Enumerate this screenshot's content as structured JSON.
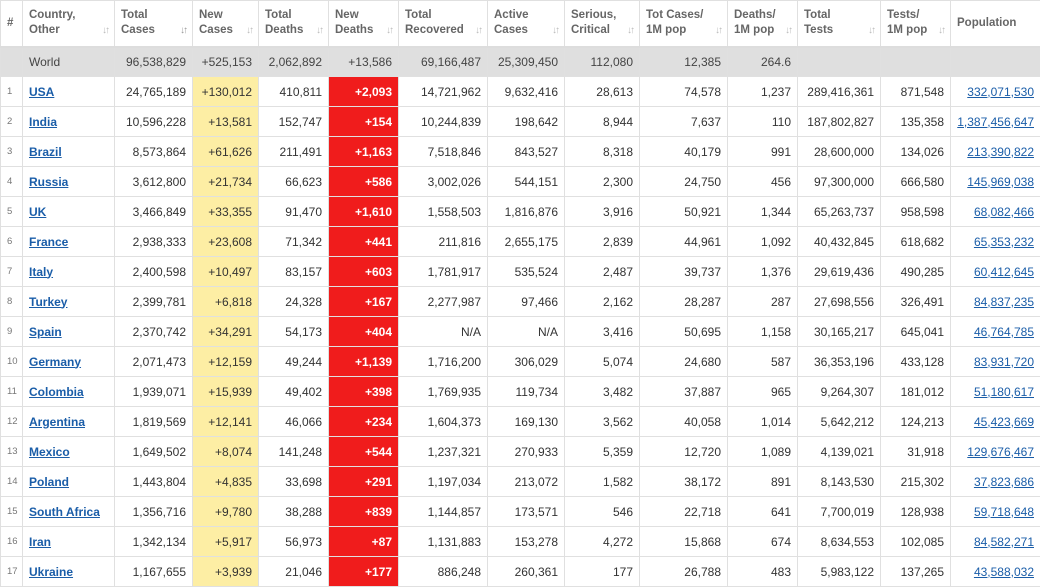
{
  "headers": [
    {
      "id": "num",
      "label": "#"
    },
    {
      "id": "country",
      "label": [
        "Country,",
        "Other"
      ]
    },
    {
      "id": "total_cases",
      "label": [
        "Total",
        "Cases"
      ]
    },
    {
      "id": "new_cases",
      "label": [
        "New",
        "Cases"
      ]
    },
    {
      "id": "total_deaths",
      "label": [
        "Total",
        "Deaths"
      ]
    },
    {
      "id": "new_deaths",
      "label": [
        "New",
        "Deaths"
      ]
    },
    {
      "id": "total_recovered",
      "label": [
        "Total",
        "Recovered"
      ]
    },
    {
      "id": "active_cases",
      "label": [
        "Active",
        "Cases"
      ]
    },
    {
      "id": "serious",
      "label": [
        "Serious,",
        "Critical"
      ]
    },
    {
      "id": "cases_per_m",
      "label": [
        "Tot Cases/",
        "1M pop"
      ]
    },
    {
      "id": "deaths_per_m",
      "label": [
        "Deaths/",
        "1M pop"
      ]
    },
    {
      "id": "total_tests",
      "label": [
        "Total",
        "Tests"
      ]
    },
    {
      "id": "tests_per_m",
      "label": [
        "Tests/",
        "1M pop"
      ]
    },
    {
      "id": "population",
      "label": [
        "Population"
      ]
    }
  ],
  "world": {
    "country": "World",
    "total_cases": "96,538,829",
    "new_cases": "+525,153",
    "total_deaths": "2,062,892",
    "new_deaths": "+13,586",
    "total_recovered": "69,166,487",
    "active_cases": "25,309,450",
    "serious": "112,080",
    "cases_per_m": "12,385",
    "deaths_per_m": "264.6",
    "total_tests": "",
    "tests_per_m": "",
    "population": ""
  },
  "rows": [
    {
      "num": "1",
      "country": "USA",
      "total_cases": "24,765,189",
      "new_cases": "+130,012",
      "total_deaths": "410,811",
      "new_deaths": "+2,093",
      "total_recovered": "14,721,962",
      "active_cases": "9,632,416",
      "serious": "28,613",
      "cases_per_m": "74,578",
      "deaths_per_m": "1,237",
      "total_tests": "289,416,361",
      "tests_per_m": "871,548",
      "population": "332,071,530"
    },
    {
      "num": "2",
      "country": "India",
      "total_cases": "10,596,228",
      "new_cases": "+13,581",
      "total_deaths": "152,747",
      "new_deaths": "+154",
      "total_recovered": "10,244,839",
      "active_cases": "198,642",
      "serious": "8,944",
      "cases_per_m": "7,637",
      "deaths_per_m": "110",
      "total_tests": "187,802,827",
      "tests_per_m": "135,358",
      "population": "1,387,456,647"
    },
    {
      "num": "3",
      "country": "Brazil",
      "total_cases": "8,573,864",
      "new_cases": "+61,626",
      "total_deaths": "211,491",
      "new_deaths": "+1,163",
      "total_recovered": "7,518,846",
      "active_cases": "843,527",
      "serious": "8,318",
      "cases_per_m": "40,179",
      "deaths_per_m": "991",
      "total_tests": "28,600,000",
      "tests_per_m": "134,026",
      "population": "213,390,822"
    },
    {
      "num": "4",
      "country": "Russia",
      "total_cases": "3,612,800",
      "new_cases": "+21,734",
      "total_deaths": "66,623",
      "new_deaths": "+586",
      "total_recovered": "3,002,026",
      "active_cases": "544,151",
      "serious": "2,300",
      "cases_per_m": "24,750",
      "deaths_per_m": "456",
      "total_tests": "97,300,000",
      "tests_per_m": "666,580",
      "population": "145,969,038"
    },
    {
      "num": "5",
      "country": "UK",
      "total_cases": "3,466,849",
      "new_cases": "+33,355",
      "total_deaths": "91,470",
      "new_deaths": "+1,610",
      "total_recovered": "1,558,503",
      "active_cases": "1,816,876",
      "serious": "3,916",
      "cases_per_m": "50,921",
      "deaths_per_m": "1,344",
      "total_tests": "65,263,737",
      "tests_per_m": "958,598",
      "population": "68,082,466"
    },
    {
      "num": "6",
      "country": "France",
      "total_cases": "2,938,333",
      "new_cases": "+23,608",
      "total_deaths": "71,342",
      "new_deaths": "+441",
      "total_recovered": "211,816",
      "active_cases": "2,655,175",
      "serious": "2,839",
      "cases_per_m": "44,961",
      "deaths_per_m": "1,092",
      "total_tests": "40,432,845",
      "tests_per_m": "618,682",
      "population": "65,353,232"
    },
    {
      "num": "7",
      "country": "Italy",
      "total_cases": "2,400,598",
      "new_cases": "+10,497",
      "total_deaths": "83,157",
      "new_deaths": "+603",
      "total_recovered": "1,781,917",
      "active_cases": "535,524",
      "serious": "2,487",
      "cases_per_m": "39,737",
      "deaths_per_m": "1,376",
      "total_tests": "29,619,436",
      "tests_per_m": "490,285",
      "population": "60,412,645"
    },
    {
      "num": "8",
      "country": "Turkey",
      "total_cases": "2,399,781",
      "new_cases": "+6,818",
      "total_deaths": "24,328",
      "new_deaths": "+167",
      "total_recovered": "2,277,987",
      "active_cases": "97,466",
      "serious": "2,162",
      "cases_per_m": "28,287",
      "deaths_per_m": "287",
      "total_tests": "27,698,556",
      "tests_per_m": "326,491",
      "population": "84,837,235"
    },
    {
      "num": "9",
      "country": "Spain",
      "total_cases": "2,370,742",
      "new_cases": "+34,291",
      "total_deaths": "54,173",
      "new_deaths": "+404",
      "total_recovered": "N/A",
      "active_cases": "N/A",
      "serious": "3,416",
      "cases_per_m": "50,695",
      "deaths_per_m": "1,158",
      "total_tests": "30,165,217",
      "tests_per_m": "645,041",
      "population": "46,764,785"
    },
    {
      "num": "10",
      "country": "Germany",
      "total_cases": "2,071,473",
      "new_cases": "+12,159",
      "total_deaths": "49,244",
      "new_deaths": "+1,139",
      "total_recovered": "1,716,200",
      "active_cases": "306,029",
      "serious": "5,074",
      "cases_per_m": "24,680",
      "deaths_per_m": "587",
      "total_tests": "36,353,196",
      "tests_per_m": "433,128",
      "population": "83,931,720"
    },
    {
      "num": "11",
      "country": "Colombia",
      "total_cases": "1,939,071",
      "new_cases": "+15,939",
      "total_deaths": "49,402",
      "new_deaths": "+398",
      "total_recovered": "1,769,935",
      "active_cases": "119,734",
      "serious": "3,482",
      "cases_per_m": "37,887",
      "deaths_per_m": "965",
      "total_tests": "9,264,307",
      "tests_per_m": "181,012",
      "population": "51,180,617"
    },
    {
      "num": "12",
      "country": "Argentina",
      "total_cases": "1,819,569",
      "new_cases": "+12,141",
      "total_deaths": "46,066",
      "new_deaths": "+234",
      "total_recovered": "1,604,373",
      "active_cases": "169,130",
      "serious": "3,562",
      "cases_per_m": "40,058",
      "deaths_per_m": "1,014",
      "total_tests": "5,642,212",
      "tests_per_m": "124,213",
      "population": "45,423,669"
    },
    {
      "num": "13",
      "country": "Mexico",
      "total_cases": "1,649,502",
      "new_cases": "+8,074",
      "total_deaths": "141,248",
      "new_deaths": "+544",
      "total_recovered": "1,237,321",
      "active_cases": "270,933",
      "serious": "5,359",
      "cases_per_m": "12,720",
      "deaths_per_m": "1,089",
      "total_tests": "4,139,021",
      "tests_per_m": "31,918",
      "population": "129,676,467"
    },
    {
      "num": "14",
      "country": "Poland",
      "total_cases": "1,443,804",
      "new_cases": "+4,835",
      "total_deaths": "33,698",
      "new_deaths": "+291",
      "total_recovered": "1,197,034",
      "active_cases": "213,072",
      "serious": "1,582",
      "cases_per_m": "38,172",
      "deaths_per_m": "891",
      "total_tests": "8,143,530",
      "tests_per_m": "215,302",
      "population": "37,823,686"
    },
    {
      "num": "15",
      "country": "South Africa",
      "total_cases": "1,356,716",
      "new_cases": "+9,780",
      "total_deaths": "38,288",
      "new_deaths": "+839",
      "total_recovered": "1,144,857",
      "active_cases": "173,571",
      "serious": "546",
      "cases_per_m": "22,718",
      "deaths_per_m": "641",
      "total_tests": "7,700,019",
      "tests_per_m": "128,938",
      "population": "59,718,648"
    },
    {
      "num": "16",
      "country": "Iran",
      "total_cases": "1,342,134",
      "new_cases": "+5,917",
      "total_deaths": "56,973",
      "new_deaths": "+87",
      "total_recovered": "1,131,883",
      "active_cases": "153,278",
      "serious": "4,272",
      "cases_per_m": "15,868",
      "deaths_per_m": "674",
      "total_tests": "8,634,553",
      "tests_per_m": "102,085",
      "population": "84,582,271"
    },
    {
      "num": "17",
      "country": "Ukraine",
      "total_cases": "1,167,655",
      "new_cases": "+3,939",
      "total_deaths": "21,046",
      "new_deaths": "+177",
      "total_recovered": "886,248",
      "active_cases": "260,361",
      "serious": "177",
      "cases_per_m": "26,788",
      "deaths_per_m": "483",
      "total_tests": "5,983,122",
      "tests_per_m": "137,265",
      "population": "43,588,032"
    }
  ],
  "colors": {
    "new_cases_bg": "#fdeea4",
    "new_deaths_bg": "#f01c1c",
    "world_bg": "#dfdfdf",
    "link": "#1a5da8"
  }
}
